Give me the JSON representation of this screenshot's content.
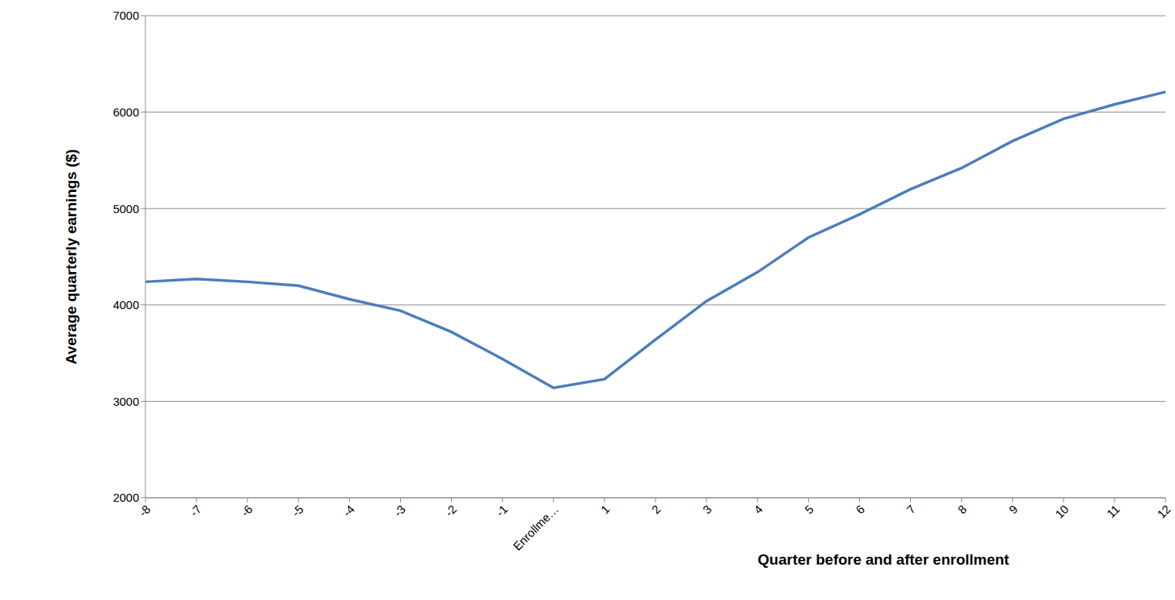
{
  "chart_data": {
    "type": "line",
    "x_label": "Quarter before and after enrollment",
    "y_label": "Average quarterly earnings ($)",
    "categories": [
      "-8",
      "-7",
      "-6",
      "-5",
      "-4",
      "-3",
      "-2",
      "-1",
      "Enrollme…",
      "1",
      "2",
      "3",
      "4",
      "5",
      "6",
      "7",
      "8",
      "9",
      "10",
      "11",
      "12"
    ],
    "values": [
      4240,
      4270,
      4240,
      4200,
      4060,
      3940,
      3720,
      3440,
      3140,
      3230,
      3640,
      4040,
      4340,
      4700,
      4940,
      5200,
      5420,
      5700,
      5930,
      6080,
      6210
    ],
    "color": "#4a7ebb",
    "ylim": [
      2000,
      7000
    ],
    "yticks": [
      2000,
      3000,
      4000,
      5000,
      6000,
      7000
    ],
    "grid": true
  }
}
